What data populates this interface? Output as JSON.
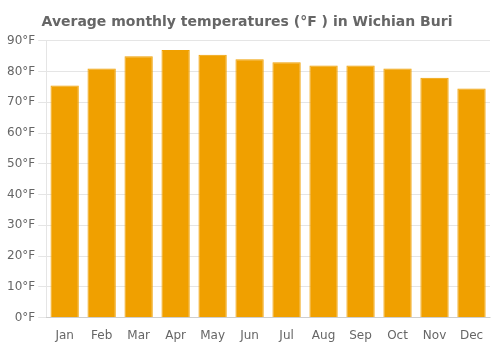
{
  "chart_data": {
    "type": "bar",
    "title": "Average monthly temperatures (°F ) in Wichian Buri",
    "categories": [
      "Jan",
      "Feb",
      "Mar",
      "Apr",
      "May",
      "Jun",
      "Jul",
      "Aug",
      "Sep",
      "Oct",
      "Nov",
      "Dec"
    ],
    "values": [
      75.5,
      81.0,
      85.0,
      87.0,
      85.5,
      84.0,
      83.0,
      82.0,
      82.0,
      81.0,
      78.0,
      74.5
    ],
    "color": "#F0A000",
    "ylim": [
      0,
      90
    ],
    "yticks": [
      {
        "value": 0,
        "label": "0°F"
      },
      {
        "value": 10,
        "label": "10°F"
      },
      {
        "value": 20,
        "label": "20°F"
      },
      {
        "value": 30,
        "label": "30°F"
      },
      {
        "value": 40,
        "label": "40°F"
      },
      {
        "value": 50,
        "label": "50°F"
      },
      {
        "value": 60,
        "label": "60°F"
      },
      {
        "value": 70,
        "label": "70°F"
      },
      {
        "value": 80,
        "label": "80°F"
      },
      {
        "value": 90,
        "label": "90°F"
      }
    ],
    "grid": true
  }
}
